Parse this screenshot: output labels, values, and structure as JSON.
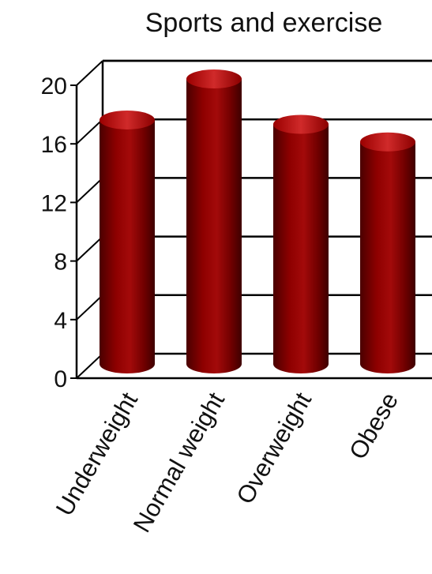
{
  "chart_data": {
    "type": "bar",
    "title": "Sports and exercise",
    "xlabel": "",
    "ylabel": "",
    "categories": [
      "Underweight",
      "Normal weight",
      "Overweight",
      "Obese"
    ],
    "values": [
      17.2,
      20.0,
      16.9,
      15.7
    ],
    "ylim": [
      0,
      20
    ],
    "yticks": [
      "0",
      "4",
      "8",
      "12",
      "16",
      "20"
    ],
    "grid": true,
    "legend": "none",
    "bar_color": "#8b0000",
    "style": "3d-cylinder"
  }
}
